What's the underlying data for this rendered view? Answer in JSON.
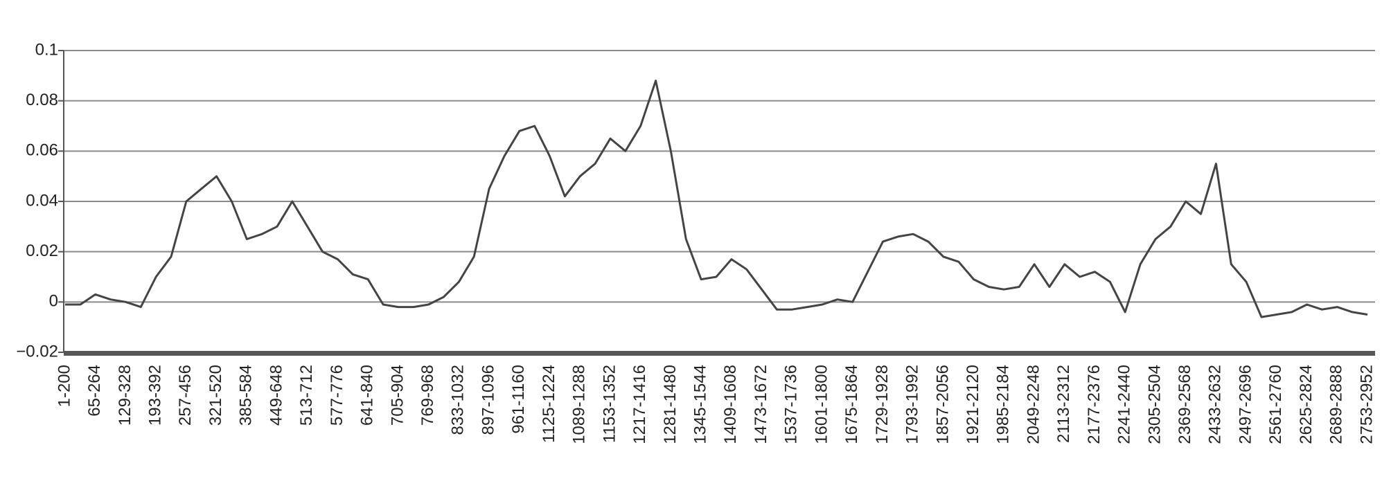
{
  "chart_data": {
    "type": "line",
    "categories": [
      "1-200",
      null,
      "65-264",
      null,
      "129-328",
      null,
      "193-392",
      null,
      "257-456",
      null,
      "321-520",
      null,
      "385-584",
      null,
      "449-648",
      null,
      "513-712",
      null,
      "577-776",
      null,
      "641-840",
      null,
      "705-904",
      null,
      "769-968",
      null,
      "833-1032",
      null,
      "897-1096",
      null,
      "961-1160",
      null,
      "1125-1224",
      null,
      "1089-1288",
      null,
      "1153-1352",
      null,
      "1217-1416",
      null,
      "1281-1480",
      null,
      "1345-1544",
      null,
      "1409-1608",
      null,
      "1473-1672",
      null,
      "1537-1736",
      null,
      "1601-1800",
      null,
      "1675-1864",
      null,
      "1729-1928",
      null,
      "1793-1992",
      null,
      "1857-2056",
      null,
      "1921-2120",
      null,
      "1985-2184",
      null,
      "2049-2248",
      null,
      "2113-2312",
      null,
      "2177-2376",
      null,
      "2241-2440",
      null,
      "2305-2504",
      null,
      "2369-2568",
      null,
      "2433-2632",
      null,
      "2497-2696",
      null,
      "2561-2760",
      null,
      "2625-2824",
      null,
      "2689-2888",
      null,
      "2753-2952"
    ],
    "values": [
      -0.001,
      -0.001,
      0.003,
      0.001,
      0.0,
      -0.002,
      0.01,
      0.018,
      0.04,
      0.045,
      0.05,
      0.04,
      0.025,
      0.027,
      0.03,
      0.04,
      0.03,
      0.02,
      0.017,
      0.011,
      0.009,
      -0.001,
      -0.002,
      -0.002,
      -0.001,
      0.002,
      0.008,
      0.018,
      0.045,
      0.058,
      0.068,
      0.07,
      0.058,
      0.042,
      0.05,
      0.055,
      0.065,
      0.06,
      0.07,
      0.088,
      0.06,
      0.025,
      0.009,
      0.01,
      0.017,
      0.013,
      0.005,
      -0.003,
      -0.003,
      -0.002,
      -0.001,
      0.001,
      0.0,
      0.012,
      0.024,
      0.026,
      0.027,
      0.024,
      0.018,
      0.016,
      0.009,
      0.006,
      0.005,
      0.006,
      0.015,
      0.006,
      0.015,
      0.01,
      0.012,
      0.008,
      -0.004,
      0.015,
      0.025,
      0.03,
      0.04,
      0.035,
      0.055,
      0.015,
      0.008,
      -0.006,
      -0.005,
      -0.004,
      -0.001,
      -0.003,
      -0.002,
      -0.004,
      -0.005
    ],
    "color": "#444444",
    "ylim": [
      -0.02,
      0.1
    ],
    "yticks": [
      {
        "value": -0.02,
        "label": "−0.02"
      },
      0,
      0.02,
      0.04,
      0.06,
      0.08,
      0.1
    ],
    "grid": true
  }
}
